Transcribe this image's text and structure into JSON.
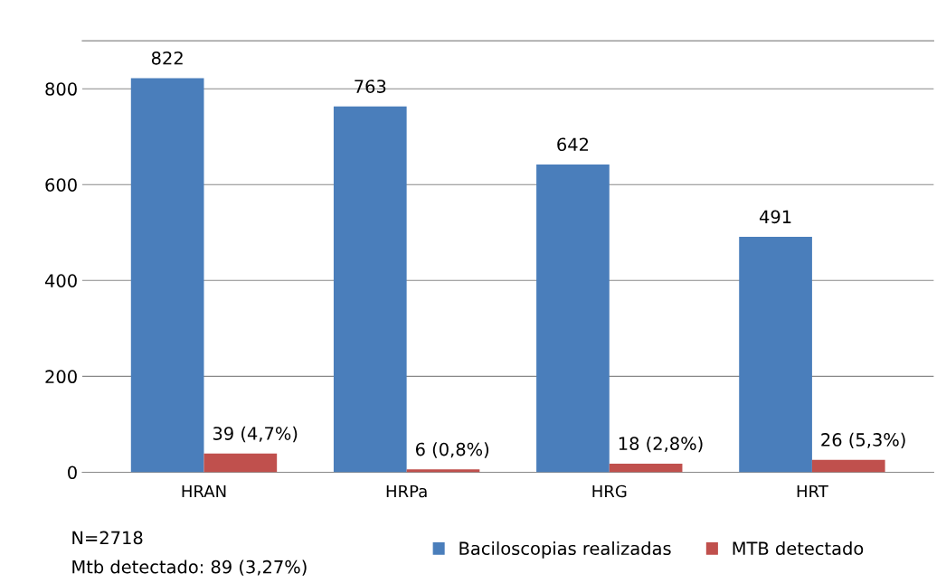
{
  "chart_data": {
    "type": "bar",
    "categories": [
      "HRAN",
      "HRPa",
      "HRG",
      "HRT"
    ],
    "series": [
      {
        "name": "Baciloscopias realizadas",
        "color": "#4a7ebb",
        "values": [
          822,
          763,
          642,
          491
        ],
        "value_labels": [
          "822",
          "763",
          "642",
          "491"
        ]
      },
      {
        "name": "MTB detectado",
        "color": "#c0504d",
        "values": [
          39,
          6,
          18,
          26
        ],
        "value_labels": [
          "39 (4,7%)",
          "6 (0,8%)",
          "18 (2,8%)",
          "26 (5,3%)"
        ]
      }
    ],
    "ylim": [
      0,
      900
    ],
    "yticks": [
      0,
      200,
      400,
      600,
      800
    ],
    "grid": "y",
    "legend": "bottom right",
    "annotations": [
      "N=2718",
      "Mtb detectado: 89 (3,27%)"
    ]
  }
}
